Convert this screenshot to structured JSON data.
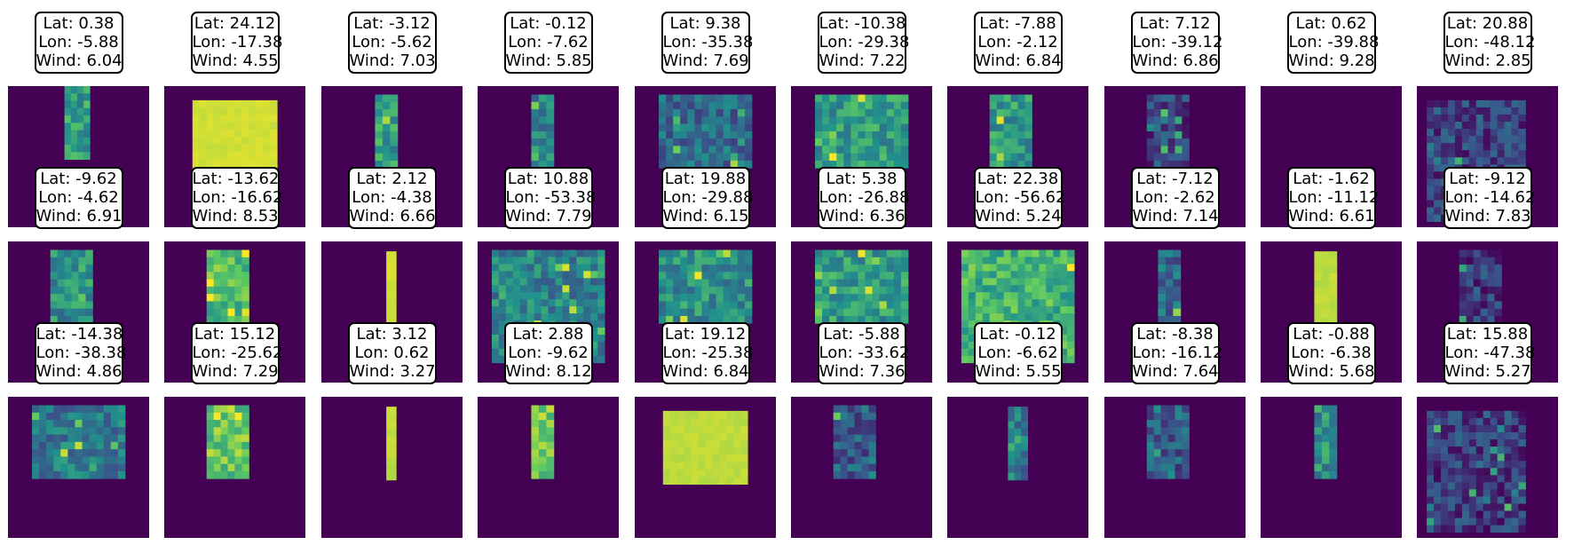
{
  "chart_data": {
    "type": "heatmap",
    "colormap": "viridis",
    "background_color": "#440154",
    "rows": 3,
    "cols": 10,
    "label_prefixes": {
      "lat": "Lat: ",
      "lon": "Lon: ",
      "wind": "Wind: "
    },
    "panels": [
      {
        "lat": "0.38",
        "lon": "-5.88",
        "wind": "6.04",
        "patch": "narrow-strip",
        "level": 0.55
      },
      {
        "lat": "24.12",
        "lon": "-17.38",
        "wind": "4.55",
        "patch": "wide-uniform",
        "level": 0.93
      },
      {
        "lat": "-3.12",
        "lon": "-5.62",
        "wind": "7.03",
        "patch": "narrow",
        "level": 0.55
      },
      {
        "lat": "-0.12",
        "lon": "-7.62",
        "wind": "5.85",
        "patch": "narrow",
        "level": 0.45
      },
      {
        "lat": "9.38",
        "lon": "-35.38",
        "wind": "7.69",
        "patch": "wide-noisy",
        "level": 0.35
      },
      {
        "lat": "-10.38",
        "lon": "-29.38",
        "wind": "7.22",
        "patch": "wide-noisy",
        "level": 0.55
      },
      {
        "lat": "-7.88",
        "lon": "-2.12",
        "wind": "6.84",
        "patch": "medium",
        "level": 0.55
      },
      {
        "lat": "7.12",
        "lon": "-39.12",
        "wind": "6.86",
        "patch": "medium-dark",
        "level": 0.2
      },
      {
        "lat": "0.62",
        "lon": "-39.88",
        "wind": "9.28",
        "patch": "none",
        "level": 0
      },
      {
        "lat": "20.88",
        "lon": "-48.12",
        "wind": "2.85",
        "patch": "full-sparse",
        "level": 0.2
      },
      {
        "lat": "-9.62",
        "lon": "-4.62",
        "wind": "6.91",
        "patch": "medium",
        "level": 0.5
      },
      {
        "lat": "-13.62",
        "lon": "-16.62",
        "wind": "8.53",
        "patch": "medium",
        "level": 0.7
      },
      {
        "lat": "2.12",
        "lon": "-4.38",
        "wind": "6.66",
        "patch": "thin-uniform",
        "level": 0.93
      },
      {
        "lat": "10.88",
        "lon": "-53.38",
        "wind": "7.79",
        "patch": "full-noisy",
        "level": 0.45
      },
      {
        "lat": "19.88",
        "lon": "-29.88",
        "wind": "6.15",
        "patch": "wide-noisy",
        "level": 0.5
      },
      {
        "lat": "5.38",
        "lon": "-26.88",
        "wind": "6.36",
        "patch": "wide-noisy",
        "level": 0.55
      },
      {
        "lat": "22.38",
        "lon": "-56.62",
        "wind": "5.24",
        "patch": "full-noisy",
        "level": 0.65
      },
      {
        "lat": "-7.12",
        "lon": "-2.62",
        "wind": "7.14",
        "patch": "narrow",
        "level": 0.35
      },
      {
        "lat": "-1.62",
        "lon": "-11.12",
        "wind": "6.61",
        "patch": "narrow-uniform",
        "level": 0.9
      },
      {
        "lat": "-9.12",
        "lon": "-14.62",
        "wind": "7.83",
        "patch": "medium-dark",
        "level": 0.18
      },
      {
        "lat": "-14.38",
        "lon": "-38.38",
        "wind": "4.86",
        "patch": "wide-noisy",
        "level": 0.4
      },
      {
        "lat": "15.12",
        "lon": "-25.62",
        "wind": "7.29",
        "patch": "medium",
        "level": 0.75
      },
      {
        "lat": "3.12",
        "lon": "0.62",
        "wind": "3.27",
        "patch": "thin-uniform",
        "level": 0.9
      },
      {
        "lat": "2.88",
        "lon": "-9.62",
        "wind": "8.12",
        "patch": "narrow",
        "level": 0.75
      },
      {
        "lat": "19.12",
        "lon": "-25.38",
        "wind": "6.84",
        "patch": "wide-uniform",
        "level": 0.9
      },
      {
        "lat": "-5.88",
        "lon": "-33.62",
        "wind": "7.36",
        "patch": "medium-dark",
        "level": 0.3
      },
      {
        "lat": "-0.12",
        "lon": "-6.62",
        "wind": "5.55",
        "patch": "thin",
        "level": 0.4
      },
      {
        "lat": "-8.38",
        "lon": "-16.12",
        "wind": "7.64",
        "patch": "medium",
        "level": 0.3
      },
      {
        "lat": "-0.88",
        "lon": "-6.38",
        "wind": "5.68",
        "patch": "narrow",
        "level": 0.5
      },
      {
        "lat": "15.88",
        "lon": "-47.38",
        "wind": "5.27",
        "patch": "full-sparse",
        "level": 0.18
      }
    ]
  }
}
